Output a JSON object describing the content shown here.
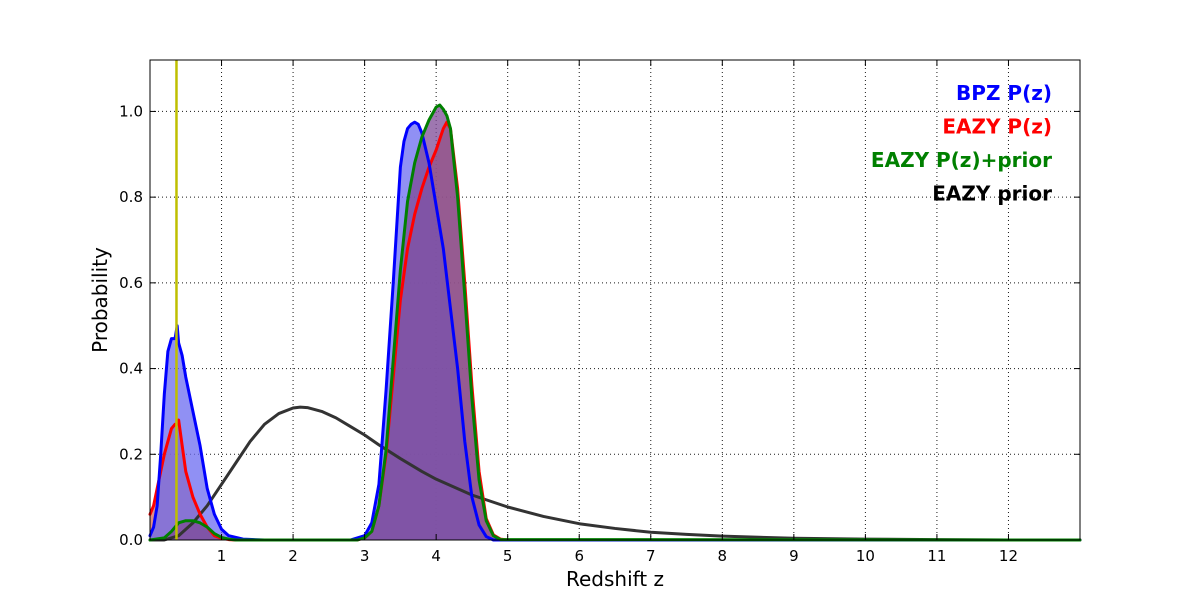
{
  "chart_data": {
    "type": "area",
    "title": "",
    "xlabel": "Redshift z",
    "ylabel": "Probability",
    "xlim": [
      0,
      13
    ],
    "ylim": [
      0,
      1.12
    ],
    "grid": true,
    "legend_placement": "top-right",
    "x_ticks": [
      {
        "value": 1,
        "label": "1"
      },
      {
        "value": 2,
        "label": "2"
      },
      {
        "value": 3,
        "label": "3"
      },
      {
        "value": 4,
        "label": "4"
      },
      {
        "value": 5,
        "label": "5"
      },
      {
        "value": 6,
        "label": "6"
      },
      {
        "value": 7,
        "label": "7"
      },
      {
        "value": 8,
        "label": "8"
      },
      {
        "value": 9,
        "label": "9"
      },
      {
        "value": 10,
        "label": "10"
      },
      {
        "value": 11,
        "label": "11"
      },
      {
        "value": 12,
        "label": "12"
      }
    ],
    "y_ticks": [
      {
        "value": 0.0,
        "label": "0.0"
      },
      {
        "value": 0.2,
        "label": "0.2"
      },
      {
        "value": 0.4,
        "label": "0.4"
      },
      {
        "value": 0.6,
        "label": "0.6"
      },
      {
        "value": 0.8,
        "label": "0.8"
      },
      {
        "value": 1.0,
        "label": "1.0"
      }
    ],
    "vertical_line": {
      "x": 0.37,
      "color": "#bfbf00"
    },
    "series": [
      {
        "name": "EAZY prior",
        "color": "#333333",
        "fill": false,
        "x": [
          0.0,
          0.2,
          0.4,
          0.6,
          0.8,
          1.0,
          1.2,
          1.4,
          1.6,
          1.8,
          2.0,
          2.1,
          2.2,
          2.4,
          2.6,
          2.8,
          3.0,
          3.2,
          3.5,
          3.8,
          4.0,
          4.5,
          5.0,
          5.5,
          6.0,
          6.5,
          7.0,
          7.5,
          8.0,
          9.0,
          10.0,
          11.0,
          12.0
        ],
        "y": [
          0.0,
          0.0,
          0.01,
          0.04,
          0.08,
          0.13,
          0.18,
          0.23,
          0.27,
          0.295,
          0.308,
          0.31,
          0.309,
          0.3,
          0.285,
          0.265,
          0.245,
          0.222,
          0.19,
          0.16,
          0.142,
          0.105,
          0.077,
          0.055,
          0.038,
          0.027,
          0.018,
          0.013,
          0.009,
          0.004,
          0.002,
          0.001,
          0.0
        ]
      },
      {
        "name": "EAZY P(z)",
        "color": "#ff0000",
        "fill": true,
        "fill_color": "#d66a5a",
        "x": [
          0.0,
          0.05,
          0.1,
          0.2,
          0.3,
          0.35,
          0.38,
          0.4,
          0.45,
          0.5,
          0.6,
          0.7,
          0.8,
          0.9,
          1.0,
          1.1,
          1.2,
          2.9,
          3.0,
          3.1,
          3.2,
          3.3,
          3.4,
          3.5,
          3.6,
          3.7,
          3.8,
          3.9,
          4.0,
          4.1,
          4.15,
          4.2,
          4.3,
          4.4,
          4.5,
          4.6,
          4.7,
          4.8,
          4.9,
          5.0,
          13.0
        ],
        "y": [
          0.06,
          0.08,
          0.12,
          0.2,
          0.26,
          0.27,
          0.27,
          0.28,
          0.22,
          0.16,
          0.1,
          0.06,
          0.03,
          0.01,
          0.004,
          0.001,
          0.0,
          0.0,
          0.005,
          0.02,
          0.08,
          0.2,
          0.38,
          0.56,
          0.68,
          0.76,
          0.82,
          0.87,
          0.91,
          0.96,
          0.975,
          0.96,
          0.82,
          0.6,
          0.36,
          0.16,
          0.05,
          0.012,
          0.002,
          0.0,
          0.0
        ]
      },
      {
        "name": "BPZ P(z)",
        "color": "#0000ff",
        "fill": true,
        "fill_color": "#6b6bf0",
        "x": [
          0.0,
          0.05,
          0.1,
          0.15,
          0.2,
          0.25,
          0.3,
          0.35,
          0.38,
          0.4,
          0.45,
          0.5,
          0.55,
          0.6,
          0.7,
          0.8,
          0.9,
          1.0,
          1.1,
          1.3,
          1.6,
          2.8,
          3.0,
          3.1,
          3.2,
          3.3,
          3.4,
          3.5,
          3.55,
          3.6,
          3.65,
          3.7,
          3.75,
          3.8,
          3.9,
          4.0,
          4.1,
          4.2,
          4.3,
          4.4,
          4.5,
          4.6,
          4.7,
          4.8,
          13.0
        ],
        "y": [
          0.01,
          0.03,
          0.08,
          0.2,
          0.34,
          0.44,
          0.47,
          0.47,
          0.5,
          0.46,
          0.43,
          0.38,
          0.34,
          0.3,
          0.22,
          0.12,
          0.06,
          0.025,
          0.01,
          0.002,
          0.0,
          0.0,
          0.01,
          0.04,
          0.13,
          0.35,
          0.6,
          0.87,
          0.93,
          0.96,
          0.97,
          0.975,
          0.97,
          0.95,
          0.88,
          0.78,
          0.68,
          0.54,
          0.4,
          0.23,
          0.1,
          0.035,
          0.008,
          0.0,
          0.0
        ]
      },
      {
        "name": "EAZY P(z)+prior",
        "color": "#008000",
        "fill": true,
        "fill_color": "#7d4a95",
        "x": [
          0.0,
          0.2,
          0.3,
          0.4,
          0.5,
          0.6,
          0.7,
          0.8,
          0.9,
          1.0,
          1.1,
          1.2,
          2.9,
          3.0,
          3.1,
          3.2,
          3.3,
          3.4,
          3.5,
          3.6,
          3.7,
          3.8,
          3.9,
          4.0,
          4.05,
          4.1,
          4.15,
          4.2,
          4.3,
          4.4,
          4.5,
          4.6,
          4.7,
          4.8,
          4.9,
          13.0
        ],
        "y": [
          0.0,
          0.005,
          0.02,
          0.04,
          0.045,
          0.045,
          0.04,
          0.03,
          0.015,
          0.006,
          0.002,
          0.0,
          0.0,
          0.005,
          0.02,
          0.08,
          0.21,
          0.42,
          0.63,
          0.79,
          0.88,
          0.94,
          0.98,
          1.01,
          1.015,
          1.005,
          0.99,
          0.96,
          0.8,
          0.57,
          0.33,
          0.14,
          0.045,
          0.01,
          0.001,
          0.0
        ]
      }
    ],
    "legend": [
      {
        "label": "BPZ P(z)",
        "color": "#0000ff"
      },
      {
        "label": "EAZY P(z)",
        "color": "#ff0000"
      },
      {
        "label": "EAZY P(z)+prior",
        "color": "#008000"
      },
      {
        "label": "EAZY prior",
        "color": "#000000"
      }
    ]
  }
}
